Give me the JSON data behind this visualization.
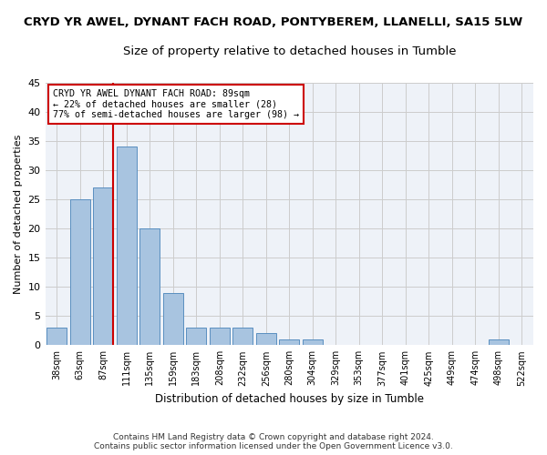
{
  "title": "CRYD YR AWEL, DYNANT FACH ROAD, PONTYBEREM, LLANELLI, SA15 5LW",
  "subtitle": "Size of property relative to detached houses in Tumble",
  "xlabel": "Distribution of detached houses by size in Tumble",
  "ylabel": "Number of detached properties",
  "bin_labels": [
    "38sqm",
    "63sqm",
    "87sqm",
    "111sqm",
    "135sqm",
    "159sqm",
    "183sqm",
    "208sqm",
    "232sqm",
    "256sqm",
    "280sqm",
    "304sqm",
    "329sqm",
    "353sqm",
    "377sqm",
    "401sqm",
    "425sqm",
    "449sqm",
    "474sqm",
    "498sqm",
    "522sqm"
  ],
  "bin_values": [
    3,
    25,
    27,
    34,
    20,
    9,
    3,
    3,
    3,
    2,
    1,
    1,
    0,
    0,
    0,
    0,
    0,
    0,
    0,
    1,
    0
  ],
  "bar_color": "#a8c4e0",
  "bar_edge_color": "#5a8fc0",
  "vline_color": "#cc0000",
  "ylim": [
    0,
    45
  ],
  "yticks": [
    0,
    5,
    10,
    15,
    20,
    25,
    30,
    35,
    40,
    45
  ],
  "annotation_title": "CRYD YR AWEL DYNANT FACH ROAD: 89sqm",
  "annotation_line1": "← 22% of detached houses are smaller (28)",
  "annotation_line2": "77% of semi-detached houses are larger (98) →",
  "annotation_box_color": "#ffffff",
  "annotation_box_edge": "#cc0000",
  "footer1": "Contains HM Land Registry data © Crown copyright and database right 2024.",
  "footer2": "Contains public sector information licensed under the Open Government Licence v3.0.",
  "background_color": "#eef2f8",
  "grid_color": "#cccccc",
  "title_fontsize": 9.5,
  "subtitle_fontsize": 9.5
}
